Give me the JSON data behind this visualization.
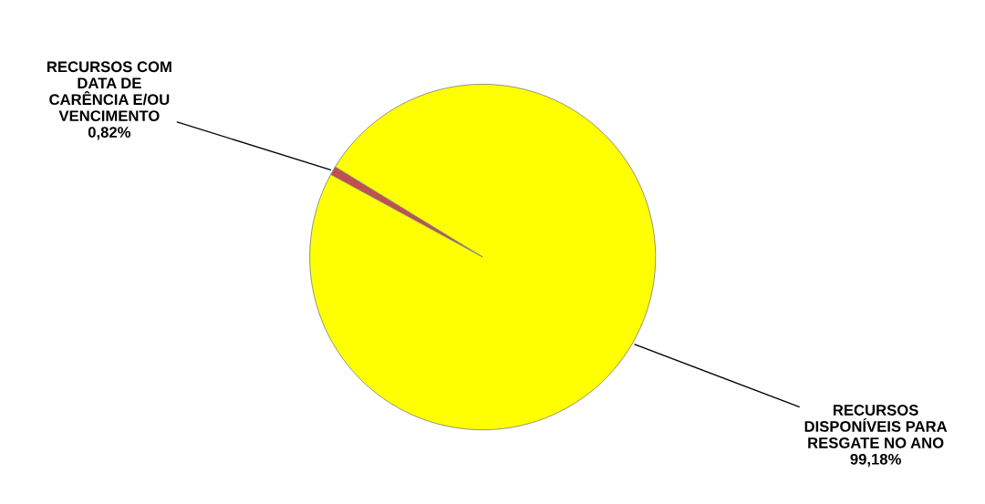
{
  "chart_data": {
    "type": "pie",
    "categories": [
      "RECURSOS COM\nDATA DE\nCARÊNCIA E/OU\nVENCIMENTO",
      "RECURSOS\nDISPONÍVEIS PARA\nRESGATE NO ANO"
    ],
    "values": [
      0.82,
      99.18
    ],
    "value_labels": [
      "0,82%",
      "99,18%"
    ],
    "colors": [
      "#c0504d",
      "#ffff00"
    ]
  }
}
